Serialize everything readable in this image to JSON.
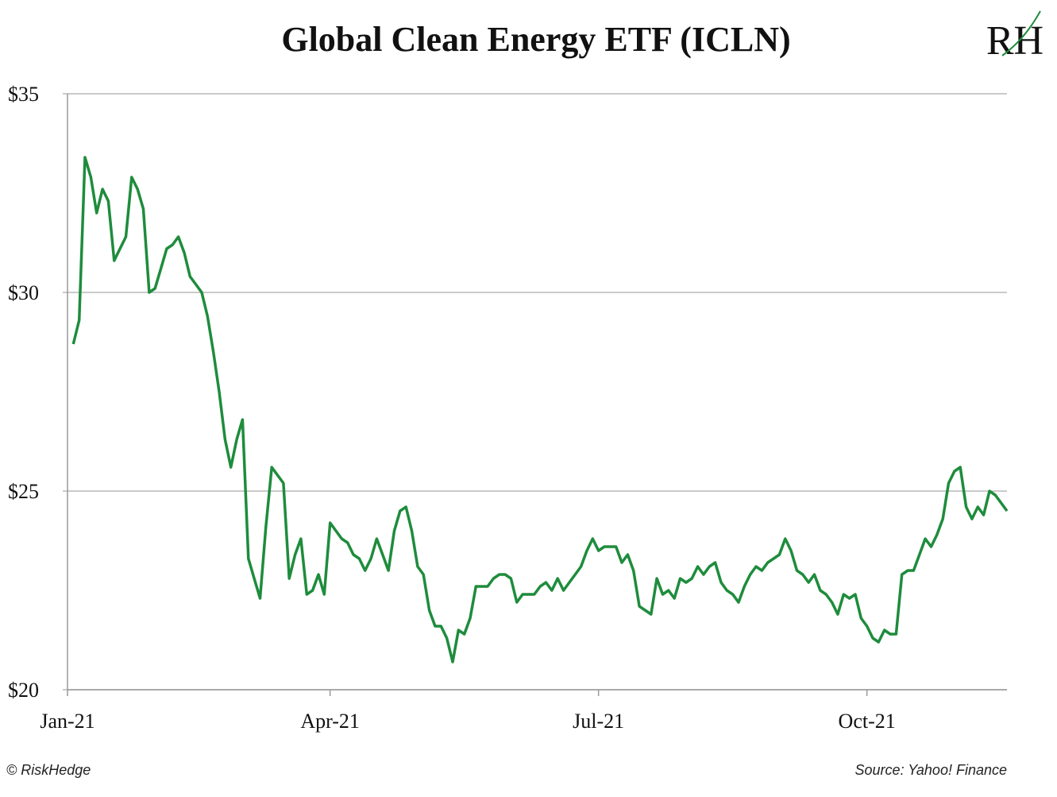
{
  "chart_data": {
    "type": "line",
    "title": "Global Clean Energy ETF (ICLN)",
    "logo": "RH",
    "credit": "© RiskHedge",
    "source": "Source: Yahoo! Finance",
    "categories": [
      "Jan-21",
      null,
      null,
      null,
      null,
      null,
      null,
      null,
      null,
      null,
      null,
      null,
      null,
      null,
      null,
      null,
      null,
      null,
      null,
      null,
      null,
      null,
      null,
      null,
      null,
      null,
      null,
      null,
      null,
      null,
      null,
      null,
      null,
      null,
      null,
      null,
      null,
      null,
      null,
      null,
      null,
      null,
      null,
      null,
      null,
      "Apr-21",
      null,
      null,
      null,
      null,
      null,
      null,
      null,
      null,
      null,
      null,
      null,
      null,
      null,
      null,
      null,
      null,
      null,
      null,
      null,
      null,
      null,
      null,
      null,
      null,
      null,
      null,
      null,
      null,
      null,
      null,
      null,
      null,
      null,
      null,
      null,
      null,
      null,
      null,
      null,
      null,
      null,
      null,
      null,
      null,
      null,
      "Jul-21",
      null,
      null,
      null,
      null,
      null,
      null,
      null,
      null,
      null,
      null,
      null,
      null,
      null,
      null,
      null,
      null,
      null,
      null,
      null,
      null,
      null,
      null,
      null,
      null,
      null,
      null,
      null,
      null,
      null,
      null,
      null,
      null,
      null,
      null,
      null,
      null,
      null,
      null,
      null,
      null,
      null,
      null,
      null,
      null,
      null,
      "Oct-21",
      null,
      null,
      null,
      null,
      null,
      null,
      null,
      null,
      null,
      null,
      null,
      null,
      null,
      null,
      null,
      null,
      null,
      null,
      null,
      null,
      null,
      null,
      null,
      null
    ],
    "series": [
      {
        "name": "ICLN",
        "color": "#1e8c3c",
        "values": [
          null,
          28.7,
          29.3,
          33.4,
          32.9,
          32.0,
          32.6,
          32.3,
          30.8,
          31.1,
          31.4,
          32.9,
          32.6,
          32.1,
          30.0,
          30.1,
          30.6,
          31.1,
          31.2,
          31.4,
          31.0,
          30.4,
          30.2,
          30.0,
          29.4,
          28.5,
          27.5,
          26.3,
          25.6,
          26.3,
          26.8,
          23.3,
          22.8,
          22.3,
          24.1,
          25.6,
          25.4,
          25.2,
          22.8,
          23.4,
          23.8,
          22.4,
          22.5,
          22.9,
          22.4,
          24.2,
          24.0,
          23.8,
          23.7,
          23.4,
          23.3,
          23.0,
          23.3,
          23.8,
          23.4,
          23.0,
          24.0,
          24.5,
          24.6,
          24.0,
          23.1,
          22.9,
          22.0,
          21.6,
          21.6,
          21.3,
          20.7,
          21.5,
          21.4,
          21.8,
          22.6,
          22.6,
          22.6,
          22.8,
          22.9,
          22.9,
          22.8,
          22.2,
          22.4,
          22.4,
          22.4,
          22.6,
          22.7,
          22.5,
          22.8,
          22.5,
          22.7,
          22.9,
          23.1,
          23.5,
          23.8,
          23.5,
          23.6,
          23.6,
          23.6,
          23.2,
          23.4,
          23.0,
          22.1,
          22.0,
          21.9,
          22.8,
          22.4,
          22.5,
          22.3,
          22.8,
          22.7,
          22.8,
          23.1,
          22.9,
          23.1,
          23.2,
          22.7,
          22.5,
          22.4,
          22.2,
          22.6,
          22.9,
          23.1,
          23.0,
          23.2,
          23.3,
          23.4,
          23.8,
          23.5,
          23.0,
          22.9,
          22.7,
          22.9,
          22.5,
          22.4,
          22.2,
          21.9,
          22.4,
          22.3,
          22.4,
          21.8,
          21.6,
          21.3,
          21.2,
          21.5,
          21.4,
          21.4,
          22.9,
          23.0,
          23.0,
          23.4,
          23.8,
          23.6,
          23.9,
          24.3,
          25.2,
          25.5,
          25.6,
          24.6,
          24.3,
          24.6,
          24.4,
          25.0,
          24.9,
          24.7,
          24.5
        ]
      }
    ],
    "ylim": [
      20,
      35
    ],
    "yticks": [
      {
        "value": 20,
        "label": "$20"
      },
      {
        "value": 25,
        "label": "$25"
      },
      {
        "value": 30,
        "label": "$30"
      },
      {
        "value": 35,
        "label": "$35"
      }
    ],
    "grid": true
  }
}
